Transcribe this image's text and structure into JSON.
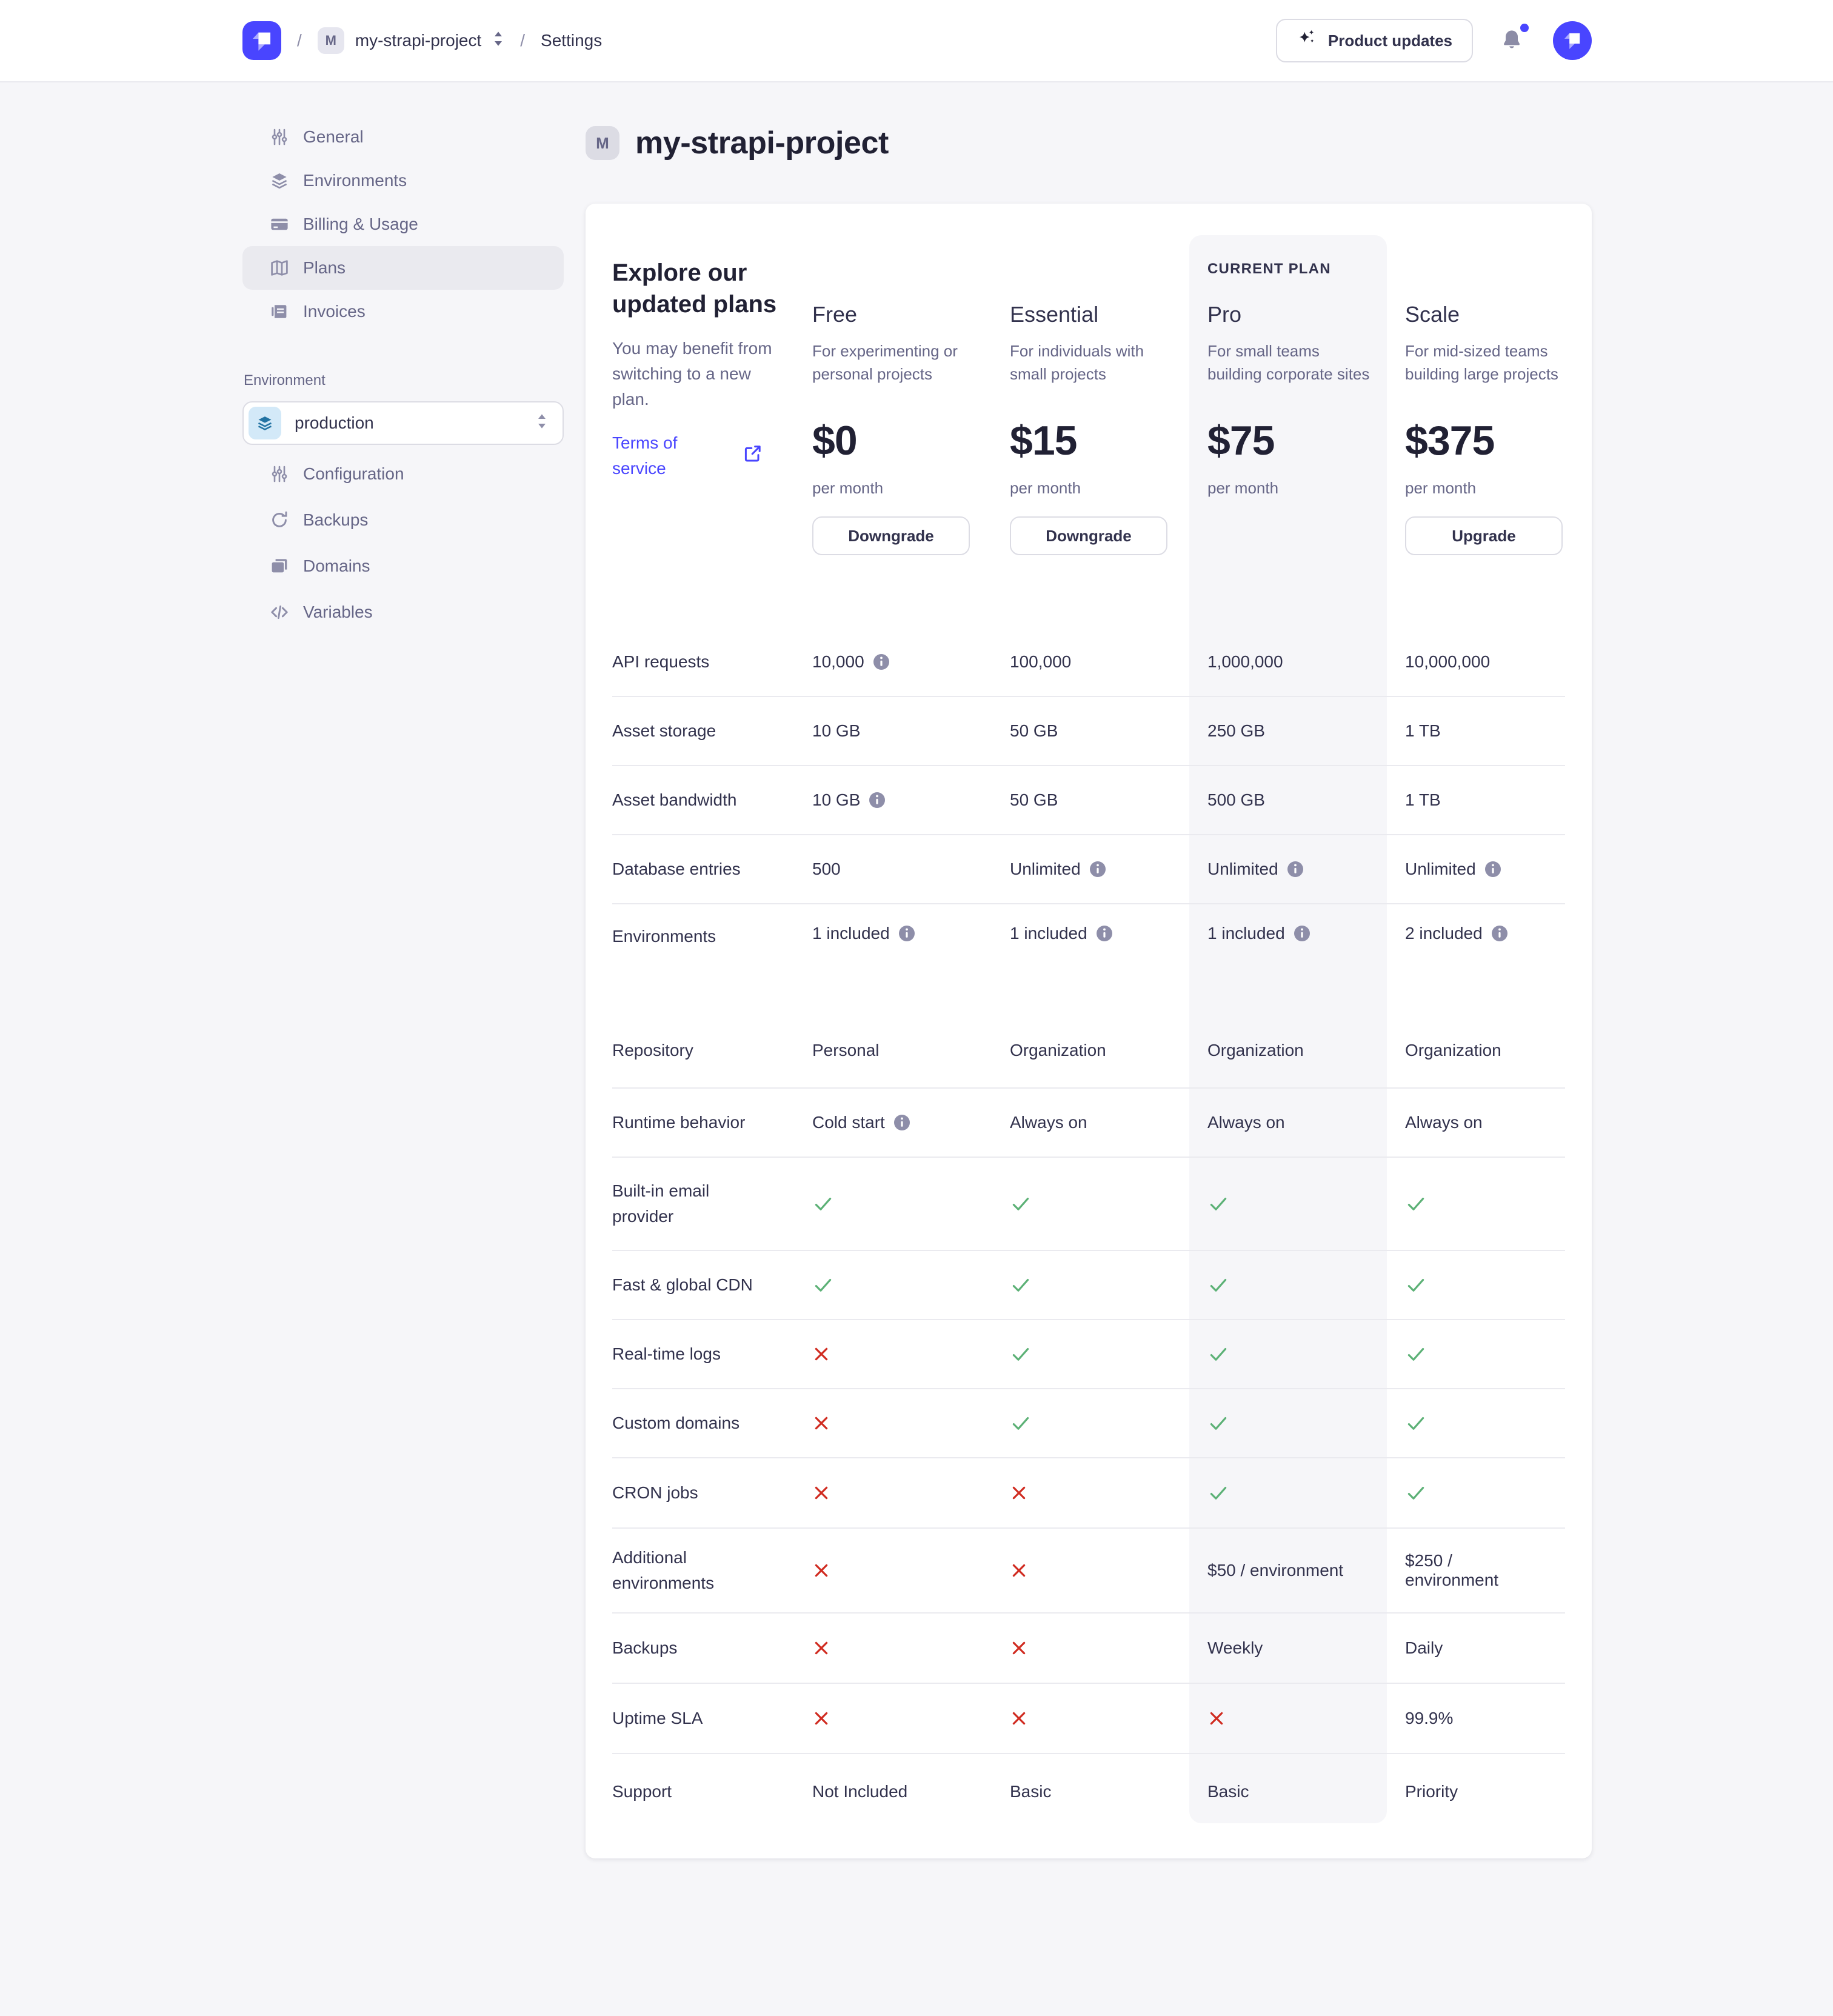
{
  "colors": {
    "accent": "#4945ff",
    "success": "#5cb176",
    "danger": "#d02b20",
    "info_icon": "#8e8ea9"
  },
  "header": {
    "separator": "/",
    "project_badge": "M",
    "project_name": "my-strapi-project",
    "section": "Settings",
    "product_updates_label": "Product updates"
  },
  "sidebar": {
    "items": [
      {
        "label": "General",
        "icon": "sliders"
      },
      {
        "label": "Environments",
        "icon": "layers"
      },
      {
        "label": "Billing & Usage",
        "icon": "credit-card"
      },
      {
        "label": "Plans",
        "icon": "map",
        "active": true
      },
      {
        "label": "Invoices",
        "icon": "invoice"
      }
    ],
    "environment_label": "Environment",
    "environment_value": "production",
    "environment_items": [
      {
        "label": "Configuration",
        "icon": "sliders"
      },
      {
        "label": "Backups",
        "icon": "refresh"
      },
      {
        "label": "Domains",
        "icon": "stack"
      },
      {
        "label": "Variables",
        "icon": "code"
      }
    ]
  },
  "main": {
    "project_badge": "M",
    "title": "my-strapi-project",
    "intro_heading": "Explore our updated plans",
    "intro_body": "You may benefit from switching to a new plan.",
    "terms_link": "Terms of service",
    "current_plan_label": "CURRENT PLAN",
    "plans": [
      {
        "name": "Free",
        "description": "For experimenting or personal projects",
        "price": "$0",
        "period": "per month",
        "action": "Downgrade",
        "current": false
      },
      {
        "name": "Essential",
        "description": "For individuals with small projects",
        "price": "$15",
        "period": "per month",
        "action": "Downgrade",
        "current": false
      },
      {
        "name": "Pro",
        "description": "For small teams building corporate sites",
        "price": "$75",
        "period": "per month",
        "action": null,
        "current": true
      },
      {
        "name": "Scale",
        "description": "For mid-sized teams building large projects",
        "price": "$375",
        "period": "per month",
        "action": "Upgrade",
        "current": false
      }
    ],
    "features": [
      {
        "label": "API requests",
        "values": [
          {
            "text": "10,000",
            "info": true
          },
          {
            "text": "100,000"
          },
          {
            "text": "1,000,000"
          },
          {
            "text": "10,000,000"
          }
        ]
      },
      {
        "label": "Asset storage",
        "values": [
          {
            "text": "10 GB"
          },
          {
            "text": "50 GB"
          },
          {
            "text": "250 GB"
          },
          {
            "text": "1 TB"
          }
        ]
      },
      {
        "label": "Asset bandwidth",
        "values": [
          {
            "text": "10 GB",
            "info": true
          },
          {
            "text": "50 GB"
          },
          {
            "text": "500 GB"
          },
          {
            "text": "1 TB"
          }
        ]
      },
      {
        "label": "Database entries",
        "values": [
          {
            "text": "500"
          },
          {
            "text": "Unlimited",
            "info": true
          },
          {
            "text": "Unlimited",
            "info": true
          },
          {
            "text": "Unlimited",
            "info": true
          }
        ]
      },
      {
        "label": "Environments",
        "values": [
          {
            "text": "1 included",
            "info": true
          },
          {
            "text": "1 included",
            "info": true
          },
          {
            "text": "1 included",
            "info": true
          },
          {
            "text": "2 included",
            "info": true
          }
        ]
      },
      {
        "label": "Repository",
        "values": [
          {
            "text": "Personal"
          },
          {
            "text": "Organization"
          },
          {
            "text": "Organization"
          },
          {
            "text": "Organization"
          }
        ]
      },
      {
        "label": "Runtime behavior",
        "values": [
          {
            "text": "Cold start",
            "info": true
          },
          {
            "text": "Always on"
          },
          {
            "text": "Always on"
          },
          {
            "text": "Always on"
          }
        ]
      },
      {
        "label": "Built-in email provider",
        "values": [
          {
            "check": true
          },
          {
            "check": true
          },
          {
            "check": true
          },
          {
            "check": true
          }
        ]
      },
      {
        "label": "Fast & global CDN",
        "values": [
          {
            "check": true
          },
          {
            "check": true
          },
          {
            "check": true
          },
          {
            "check": true
          }
        ]
      },
      {
        "label": "Real-time logs",
        "values": [
          {
            "cross": true
          },
          {
            "check": true
          },
          {
            "check": true
          },
          {
            "check": true
          }
        ]
      },
      {
        "label": "Custom domains",
        "values": [
          {
            "cross": true
          },
          {
            "check": true
          },
          {
            "check": true
          },
          {
            "check": true
          }
        ]
      },
      {
        "label": "CRON jobs",
        "values": [
          {
            "cross": true
          },
          {
            "cross": true
          },
          {
            "check": true
          },
          {
            "check": true
          }
        ]
      },
      {
        "label": "Additional environments",
        "values": [
          {
            "cross": true
          },
          {
            "cross": true
          },
          {
            "text": "$50 / environment"
          },
          {
            "text": "$250 / environment"
          }
        ]
      },
      {
        "label": "Backups",
        "values": [
          {
            "cross": true
          },
          {
            "cross": true
          },
          {
            "text": "Weekly"
          },
          {
            "text": "Daily"
          }
        ]
      },
      {
        "label": "Uptime SLA",
        "values": [
          {
            "cross": true
          },
          {
            "cross": true
          },
          {
            "cross": true
          },
          {
            "text": "99.9%"
          }
        ]
      },
      {
        "label": "Support",
        "values": [
          {
            "text": "Not Included"
          },
          {
            "text": "Basic"
          },
          {
            "text": "Basic"
          },
          {
            "text": "Priority"
          }
        ]
      }
    ]
  }
}
